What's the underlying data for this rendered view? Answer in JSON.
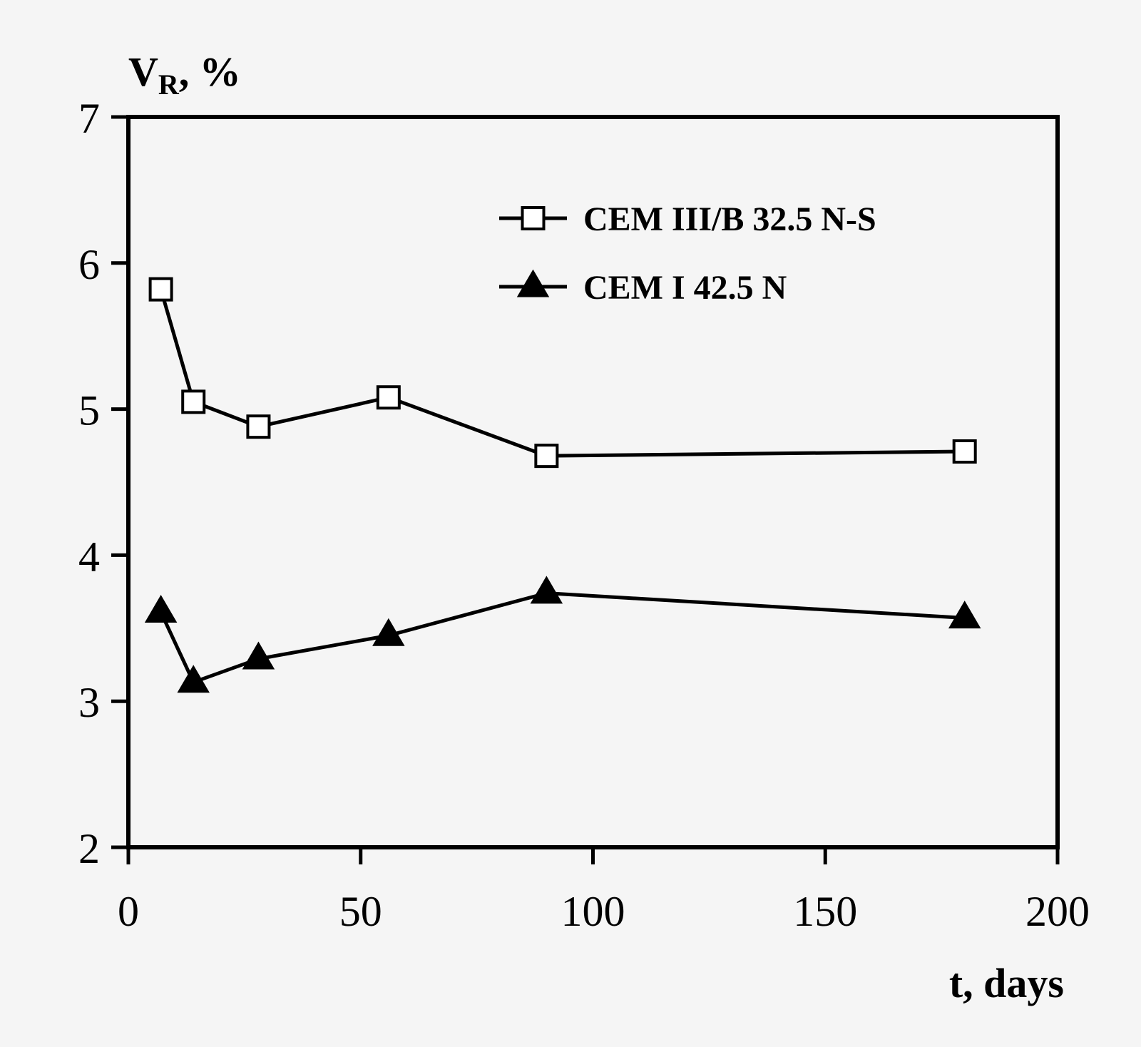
{
  "chart_data": {
    "type": "line",
    "title": "",
    "ylabel_main": "V",
    "ylabel_sub": "R",
    "ylabel_tail": ", %",
    "xlabel": "t, days",
    "xlim": [
      0,
      200
    ],
    "ylim": [
      2,
      7
    ],
    "x_ticks": [
      0,
      50,
      100,
      150,
      200
    ],
    "y_ticks": [
      2,
      3,
      4,
      5,
      6,
      7
    ],
    "x_tick_labels": [
      "0",
      "50",
      "100",
      "150",
      "200"
    ],
    "y_tick_labels": [
      "2",
      "3",
      "4",
      "5",
      "6",
      "7"
    ],
    "grid": false,
    "legend_position": "top-right",
    "series": [
      {
        "name": "CEM III/B 32.5 N-S",
        "marker": "open-square",
        "color": "#000000",
        "x": [
          7,
          14,
          28,
          56,
          90,
          180
        ],
        "y": [
          5.82,
          5.05,
          4.88,
          5.08,
          4.68,
          4.71
        ]
      },
      {
        "name": "CEM I 42.5 N",
        "marker": "filled-triangle",
        "color": "#000000",
        "x": [
          7,
          14,
          28,
          56,
          90,
          180
        ],
        "y": [
          3.61,
          3.13,
          3.29,
          3.45,
          3.74,
          3.57
        ]
      }
    ]
  }
}
